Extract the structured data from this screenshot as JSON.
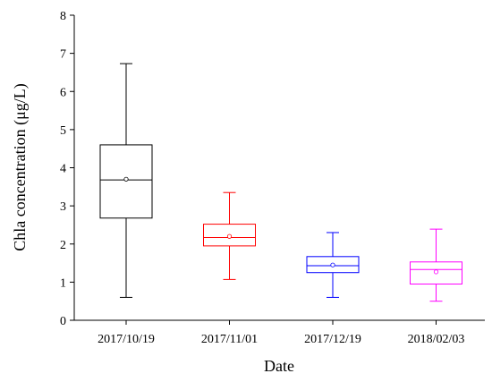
{
  "chart_data": {
    "type": "box",
    "xlabel": "Date",
    "ylabel": "Chla concentration (μg/L)",
    "ylim": [
      0,
      8
    ],
    "yticks": [
      0,
      1,
      2,
      3,
      4,
      5,
      6,
      7,
      8
    ],
    "categories": [
      "2017/10/19",
      "2017/11/01",
      "2017/12/19",
      "2018/02/03"
    ],
    "boxes": [
      {
        "category": "2017/10/19",
        "min": 0.6,
        "q1": 2.68,
        "median": 3.68,
        "mean": 3.7,
        "q3": 4.6,
        "max": 6.73,
        "color": "#000000"
      },
      {
        "category": "2017/11/01",
        "min": 1.07,
        "q1": 1.95,
        "median": 2.17,
        "mean": 2.2,
        "q3": 2.52,
        "max": 3.35,
        "color": "#ff0000"
      },
      {
        "category": "2017/12/19",
        "min": 0.6,
        "q1": 1.25,
        "median": 1.43,
        "mean": 1.45,
        "q3": 1.67,
        "max": 2.3,
        "color": "#0000ff"
      },
      {
        "category": "2018/02/03",
        "min": 0.5,
        "q1": 0.95,
        "median": 1.33,
        "mean": 1.27,
        "q3": 1.53,
        "max": 2.39,
        "color": "#ff00ff"
      }
    ],
    "legend": null,
    "grid": false
  }
}
